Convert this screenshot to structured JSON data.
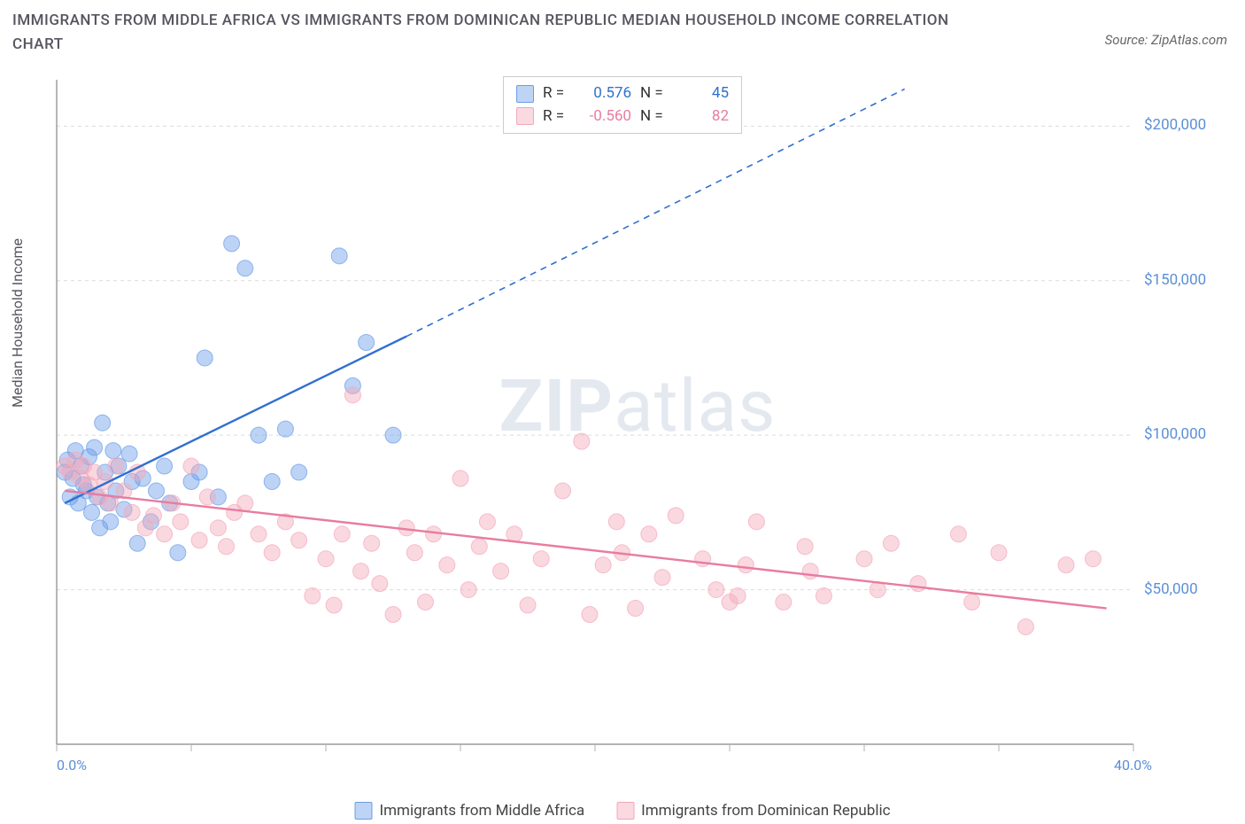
{
  "title": "IMMIGRANTS FROM MIDDLE AFRICA VS IMMIGRANTS FROM DOMINICAN REPUBLIC MEDIAN HOUSEHOLD INCOME CORRELATION CHART",
  "source": "Source: ZipAtlas.com",
  "y_axis_label": "Median Household Income",
  "watermark_bold": "ZIP",
  "watermark_light": "atlas",
  "chart": {
    "type": "scatter",
    "background": "#ffffff",
    "grid_color": "#dcdcdc",
    "axis_color": "#878787",
    "tick_color": "#b0b0b0",
    "xlim": [
      0,
      40
    ],
    "ylim": [
      0,
      215000
    ],
    "x_ticks": [
      0,
      5,
      10,
      15,
      20,
      25,
      30,
      35,
      40
    ],
    "x_tick_labels": {
      "0": "0.0%",
      "40": "40.0%"
    },
    "y_ticks": [
      50000,
      100000,
      150000,
      200000
    ],
    "y_tick_labels": {
      "50000": "$50,000",
      "100000": "$100,000",
      "150000": "$150,000",
      "200000": "$200,000"
    },
    "marker_radius": 9,
    "marker_opacity": 0.45,
    "line_width": 2.4,
    "series": [
      {
        "name": "Immigrants from Middle Africa",
        "color": "#6b9de8",
        "line_color": "#2f6fd0",
        "r_label": "R =",
        "r_value": "0.576",
        "n_label": "N =",
        "n_value": "45",
        "trend": {
          "x1": 0.3,
          "y1": 78000,
          "x2_solid": 13,
          "y2_solid": 132000,
          "x2": 31.5,
          "y2": 212000
        },
        "points": [
          [
            0.3,
            88000
          ],
          [
            0.4,
            92000
          ],
          [
            0.5,
            80000
          ],
          [
            0.6,
            86000
          ],
          [
            0.7,
            95000
          ],
          [
            0.8,
            78000
          ],
          [
            0.9,
            90000
          ],
          [
            1.0,
            84000
          ],
          [
            1.1,
            82000
          ],
          [
            1.2,
            93000
          ],
          [
            1.3,
            75000
          ],
          [
            1.4,
            96000
          ],
          [
            1.5,
            80000
          ],
          [
            1.6,
            70000
          ],
          [
            1.7,
            104000
          ],
          [
            1.8,
            88000
          ],
          [
            1.9,
            78000
          ],
          [
            2.0,
            72000
          ],
          [
            2.1,
            95000
          ],
          [
            2.2,
            82000
          ],
          [
            2.3,
            90000
          ],
          [
            2.5,
            76000
          ],
          [
            2.7,
            94000
          ],
          [
            2.8,
            85000
          ],
          [
            3.0,
            65000
          ],
          [
            3.2,
            86000
          ],
          [
            3.5,
            72000
          ],
          [
            3.7,
            82000
          ],
          [
            4.0,
            90000
          ],
          [
            4.2,
            78000
          ],
          [
            4.5,
            62000
          ],
          [
            5.0,
            85000
          ],
          [
            5.3,
            88000
          ],
          [
            5.5,
            125000
          ],
          [
            6.0,
            80000
          ],
          [
            6.5,
            162000
          ],
          [
            7.0,
            154000
          ],
          [
            7.5,
            100000
          ],
          [
            8.0,
            85000
          ],
          [
            8.5,
            102000
          ],
          [
            9.0,
            88000
          ],
          [
            10.5,
            158000
          ],
          [
            11.0,
            116000
          ],
          [
            11.5,
            130000
          ],
          [
            12.5,
            100000
          ]
        ]
      },
      {
        "name": "Immigrants from Dominican Republic",
        "color": "#f3a8bb",
        "line_color": "#e87ca0",
        "r_label": "R =",
        "r_value": "-0.560",
        "n_label": "N =",
        "n_value": "82",
        "trend": {
          "x1": 0.3,
          "y1": 82000,
          "x2_solid": 39,
          "y2_solid": 44000,
          "x2": 39,
          "y2": 44000
        },
        "points": [
          [
            0.3,
            90000
          ],
          [
            0.5,
            88000
          ],
          [
            0.7,
            92000
          ],
          [
            0.9,
            86000
          ],
          [
            1.0,
            90000
          ],
          [
            1.2,
            84000
          ],
          [
            1.4,
            88000
          ],
          [
            1.6,
            80000
          ],
          [
            1.8,
            85000
          ],
          [
            2.0,
            78000
          ],
          [
            2.2,
            90000
          ],
          [
            2.5,
            82000
          ],
          [
            2.8,
            75000
          ],
          [
            3.0,
            88000
          ],
          [
            3.3,
            70000
          ],
          [
            3.6,
            74000
          ],
          [
            4.0,
            68000
          ],
          [
            4.3,
            78000
          ],
          [
            4.6,
            72000
          ],
          [
            5.0,
            90000
          ],
          [
            5.3,
            66000
          ],
          [
            5.6,
            80000
          ],
          [
            6.0,
            70000
          ],
          [
            6.3,
            64000
          ],
          [
            6.6,
            75000
          ],
          [
            7.0,
            78000
          ],
          [
            7.5,
            68000
          ],
          [
            8.0,
            62000
          ],
          [
            8.5,
            72000
          ],
          [
            9.0,
            66000
          ],
          [
            9.5,
            48000
          ],
          [
            10.0,
            60000
          ],
          [
            10.3,
            45000
          ],
          [
            10.6,
            68000
          ],
          [
            11.0,
            113000
          ],
          [
            11.3,
            56000
          ],
          [
            11.7,
            65000
          ],
          [
            12.0,
            52000
          ],
          [
            12.5,
            42000
          ],
          [
            13.0,
            70000
          ],
          [
            13.3,
            62000
          ],
          [
            13.7,
            46000
          ],
          [
            14.0,
            68000
          ],
          [
            14.5,
            58000
          ],
          [
            15.0,
            86000
          ],
          [
            15.3,
            50000
          ],
          [
            15.7,
            64000
          ],
          [
            16.0,
            72000
          ],
          [
            16.5,
            56000
          ],
          [
            17.0,
            68000
          ],
          [
            17.5,
            45000
          ],
          [
            18.0,
            60000
          ],
          [
            18.8,
            82000
          ],
          [
            19.5,
            98000
          ],
          [
            19.8,
            42000
          ],
          [
            20.3,
            58000
          ],
          [
            20.8,
            72000
          ],
          [
            21.0,
            62000
          ],
          [
            21.5,
            44000
          ],
          [
            22.0,
            68000
          ],
          [
            22.5,
            54000
          ],
          [
            23.0,
            74000
          ],
          [
            24.0,
            60000
          ],
          [
            24.5,
            50000
          ],
          [
            25.0,
            46000
          ],
          [
            25.3,
            48000
          ],
          [
            25.6,
            58000
          ],
          [
            26.0,
            72000
          ],
          [
            27.0,
            46000
          ],
          [
            27.8,
            64000
          ],
          [
            28.0,
            56000
          ],
          [
            28.5,
            48000
          ],
          [
            30.0,
            60000
          ],
          [
            30.5,
            50000
          ],
          [
            31.0,
            65000
          ],
          [
            32.0,
            52000
          ],
          [
            33.5,
            68000
          ],
          [
            34.0,
            46000
          ],
          [
            35.0,
            62000
          ],
          [
            36.0,
            38000
          ],
          [
            37.5,
            58000
          ],
          [
            38.5,
            60000
          ]
        ]
      }
    ]
  }
}
